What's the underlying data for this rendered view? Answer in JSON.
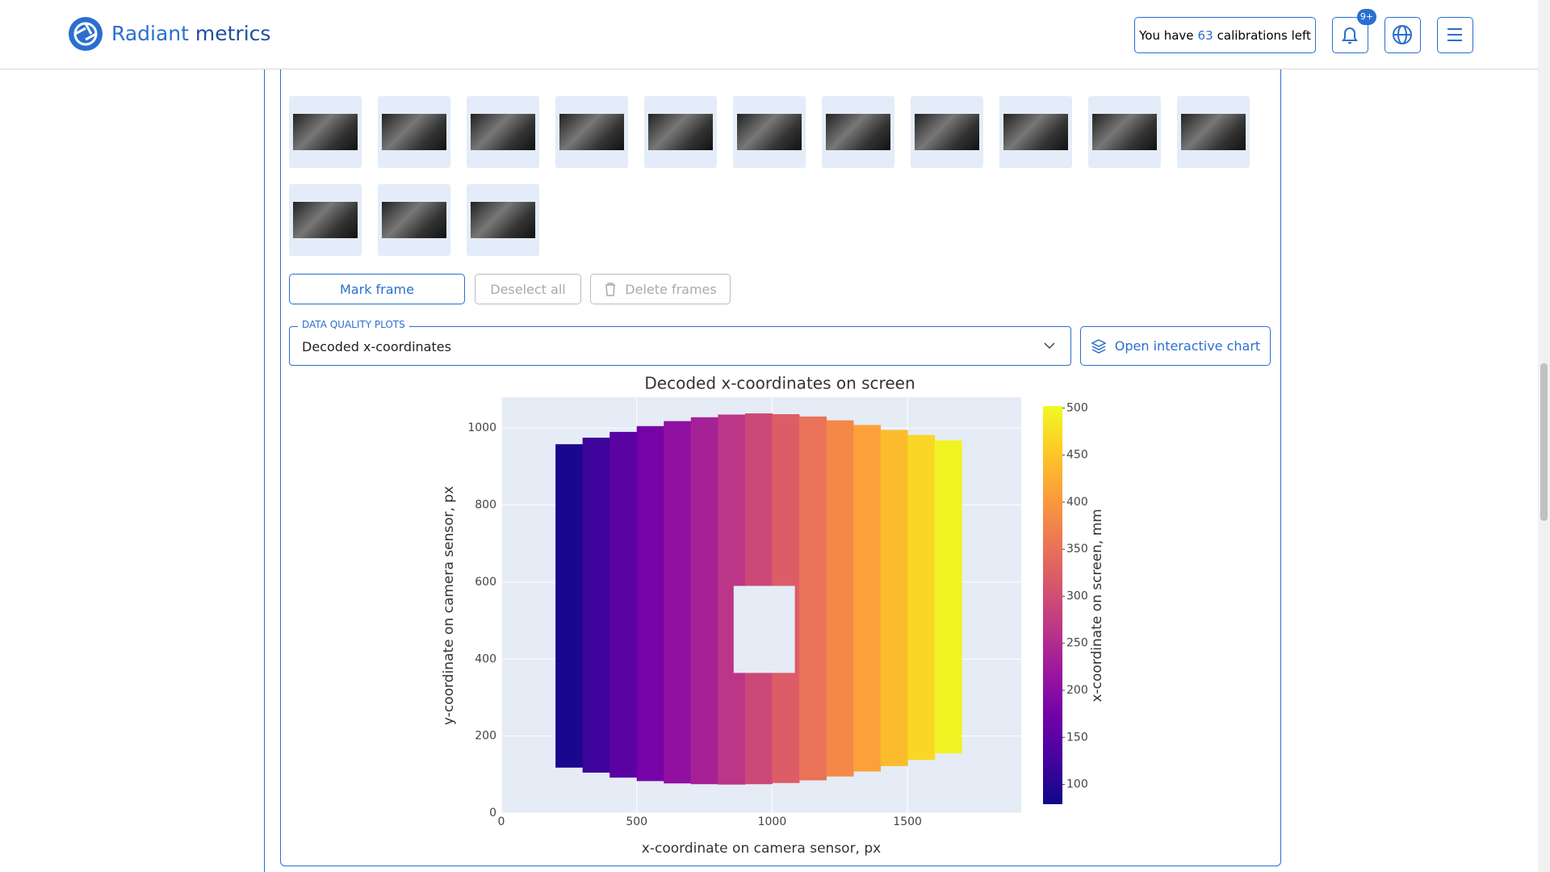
{
  "header": {
    "logo_word1": "Radiant",
    "logo_word2": "metrics",
    "calib_prefix": "You have",
    "calib_count": "63",
    "calib_suffix": "calibrations left",
    "badge": "9+"
  },
  "actions": {
    "mark": "Mark frame",
    "deselect": "Deselect all",
    "delete": "Delete frames"
  },
  "plots": {
    "legend": "DATA QUALITY PLOTS",
    "selected": "Decoded x-coordinates",
    "open": "Open interactive chart"
  },
  "chart_data": {
    "type": "heatmap",
    "title": "Decoded x-coordinates on screen",
    "x_label": "x-coordinate on camera sensor, px",
    "y_label": "y-coordinate on camera sensor, px",
    "colorbar_label": "x-coordinate on screen, mm",
    "x": [
      250,
      350,
      450,
      550,
      650,
      750,
      850,
      950,
      1050,
      1150,
      1250,
      1350,
      1450,
      1550,
      1650
    ],
    "z": [
      90,
      119,
      148,
      177,
      206,
      235,
      264,
      293,
      322,
      351,
      380,
      409,
      438,
      467,
      496
    ],
    "y_low": [
      118,
      105,
      92,
      83,
      77,
      75,
      74,
      75,
      78,
      85,
      95,
      108,
      122,
      138,
      155
    ],
    "y_high": [
      958,
      975,
      990,
      1005,
      1018,
      1028,
      1035,
      1038,
      1036,
      1030,
      1020,
      1008,
      995,
      982,
      968
    ],
    "hole": {
      "x": [
        858,
        1084
      ],
      "y": [
        364,
        590
      ]
    },
    "xlim": [
      0,
      1920
    ],
    "ylim": [
      0,
      1080
    ],
    "xticks": [
      0,
      500,
      1000,
      1500
    ],
    "yticks": [
      0,
      200,
      400,
      600,
      800,
      1000
    ],
    "zlim": [
      79,
      502
    ],
    "zticks": [
      100,
      150,
      200,
      250,
      300,
      350,
      400,
      450,
      500
    ],
    "colorscale": [
      "#0d0887",
      "#46039f",
      "#7201a8",
      "#9c179e",
      "#bd3786",
      "#d8576b",
      "#ed7953",
      "#fb9f3a",
      "#fdca26",
      "#f0f921"
    ],
    "plot_bgcolor": "#e5ecf6",
    "grid": true
  }
}
